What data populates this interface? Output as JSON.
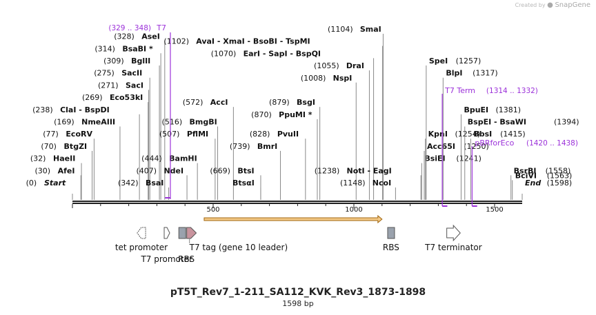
{
  "watermark": {
    "created_by": "Created by",
    "brand": "SnapGene"
  },
  "map": {
    "title": "pT5T_Rev7_1-211_SA112_KVK_Rev3_1873-1898",
    "length_label": "1598 bp",
    "length": 1598,
    "scale_ticks": [
      {
        "value": 500,
        "label": "500"
      },
      {
        "value": 1000,
        "label": "1000"
      },
      {
        "value": 1500,
        "label": "1500"
      }
    ]
  },
  "colors": {
    "site_line": "#888888",
    "primer": "#9b30d9",
    "orf_fill": "#f3c988",
    "orf_stroke": "#a0650c",
    "text": "#111111"
  },
  "sites": [
    {
      "name": "AfeI",
      "pos": "(30)",
      "bp": 30,
      "row": 1
    },
    {
      "name": "HaeII",
      "pos": "(32)",
      "bp": 32,
      "row": 2
    },
    {
      "name": "BtgZI",
      "pos": "(70)",
      "bp": 70,
      "row": 3
    },
    {
      "name": "EcoRV",
      "pos": "(77)",
      "bp": 77,
      "row": 4
    },
    {
      "name": "NmeAIII",
      "pos": "(169)",
      "bp": 169,
      "row": 5
    },
    {
      "name": "ClaI",
      "name2": "BspDI",
      "pos": "(238)",
      "bp": 238,
      "row": 6
    },
    {
      "name": "Eco53kI",
      "pos": "(269)",
      "bp": 269,
      "row": 7
    },
    {
      "name": "SacI",
      "pos": "(271)",
      "bp": 271,
      "row": 8
    },
    {
      "name": "SacII",
      "pos": "(275)",
      "bp": 275,
      "row": 9
    },
    {
      "name": "BglII",
      "pos": "(309)",
      "bp": 309,
      "row": 10
    },
    {
      "name": "BsaBI *",
      "pos": "(314)",
      "bp": 314,
      "row": 11
    },
    {
      "name": "AseI",
      "pos": "(328)",
      "bp": 328,
      "row": 12
    },
    {
      "name": "BsaI",
      "pos": "(342)",
      "bp": 342,
      "row": 0
    },
    {
      "name": "NdeI",
      "pos": "(407)",
      "bp": 407,
      "row": 1
    },
    {
      "name": "BamHI",
      "pos": "(444)",
      "bp": 444,
      "row": 2
    },
    {
      "name": "PflMI",
      "pos": "(507)",
      "bp": 507,
      "row": 4
    },
    {
      "name": "BmgBI",
      "pos": "(516)",
      "bp": 516,
      "row": 5
    },
    {
      "name": "AccI",
      "pos": "(572)",
      "bp": 572,
      "row": 6.6
    },
    {
      "name": "BtsI",
      "pos": "(669)",
      "bp": 669,
      "row": 1
    },
    {
      "name": "BtsαI",
      "pos": "",
      "bp": 669,
      "row": 0
    },
    {
      "name": "BmrI",
      "pos": "(739)",
      "bp": 739,
      "row": 3
    },
    {
      "name": "PvuII",
      "pos": "(828)",
      "bp": 828,
      "row": 4
    },
    {
      "name": "PpuMI *",
      "pos": "(870)",
      "bp": 870,
      "row": 5.6
    },
    {
      "name": "BsgI",
      "pos": "(879)",
      "bp": 879,
      "row": 6.6
    },
    {
      "name": "NspI",
      "pos": "(1008)",
      "bp": 1008,
      "row": 8.6
    },
    {
      "name": "DraI",
      "pos": "(1055)",
      "bp": 1055,
      "row": 9.6
    },
    {
      "name": "EarI",
      "name2": "SapI",
      "name3": "BspQI",
      "pos": "(1070)",
      "bp": 1070,
      "row": 10.6
    },
    {
      "name": "AvaI",
      "name2": "XmaI",
      "name3": "BsoBI",
      "name4": "TspMI",
      "pos": "(1102)",
      "bp": 1102,
      "row": 11.6
    },
    {
      "name": "SmaI",
      "pos": "(1104)",
      "bp": 1104,
      "row": 12.6
    },
    {
      "name": "NcoI",
      "pos": "(1148)",
      "bp": 1148,
      "row": 0
    },
    {
      "name": "NotI",
      "name2": "EagI",
      "pos": "(1238)",
      "bp": 1238,
      "row": 1
    },
    {
      "name": "BsiEI",
      "pos": "(1241)",
      "bp": 1241,
      "row": 2
    },
    {
      "name": "Acc65I",
      "pos": "(1250)",
      "bp": 1250,
      "row": 3
    },
    {
      "name": "KpnI",
      "pos": "(1254)",
      "bp": 1254,
      "row": 4
    },
    {
      "name": "SpeI",
      "pos": "(1257)",
      "bp": 1257,
      "row": 10
    },
    {
      "name": "BlpI",
      "pos": "(1317)",
      "bp": 1317,
      "row": 9
    },
    {
      "name": "BpuEI",
      "pos": "(1381)",
      "bp": 1381,
      "row": 6
    },
    {
      "name": "BspEI",
      "name2": "BsaWI",
      "pos": "(1394)",
      "bp": 1394,
      "row": 5
    },
    {
      "name": "BbsI",
      "pos": "(1415)",
      "bp": 1415,
      "row": 4
    },
    {
      "name": "BsrBI",
      "pos": "(1558)",
      "bp": 1558,
      "row": 1
    },
    {
      "name": "BciVI",
      "pos": "(1563)",
      "bp": 1563,
      "row": 0.6
    },
    {
      "name": "Start",
      "pos": "(0)",
      "bp": 0,
      "row": 0,
      "special": "start"
    },
    {
      "name": "End",
      "pos": "(1598)",
      "bp": 1598,
      "row": 0,
      "special": "end"
    }
  ],
  "primers": [
    {
      "name": "T7",
      "range": "(329 .. 348)",
      "start": 329,
      "end": 348,
      "dir": "fwd"
    },
    {
      "name": "T7 Term",
      "range": "(1314 .. 1332)",
      "start": 1314,
      "end": 1332,
      "dir": "rev"
    },
    {
      "name": "pBRforEco",
      "range": "(1420 .. 1438)",
      "start": 1420,
      "end": 1438,
      "dir": "rev"
    }
  ],
  "orf": {
    "start": 468,
    "end": 1100,
    "dir": "fwd"
  },
  "features": [
    {
      "name": "tet promoter",
      "type": "promoter",
      "start": 230,
      "end": 260,
      "dir": "rev",
      "label_row": 0
    },
    {
      "name": "T7 promoter",
      "type": "promoter",
      "start": 326,
      "end": 344,
      "dir": "fwd",
      "label_row": 1
    },
    {
      "name": "RBS",
      "type": "rbs",
      "start": 378,
      "end": 402,
      "dir": "none",
      "label_row": 1
    },
    {
      "name": "T7 tag (gene 10 leader)",
      "type": "tag",
      "start": 406,
      "end": 440,
      "dir": "fwd",
      "label_row": 0
    },
    {
      "name": "RBS",
      "type": "rbs",
      "start": 1120,
      "end": 1144,
      "dir": "none",
      "label_row": 0
    },
    {
      "name": "T7 terminator",
      "type": "terminator",
      "start": 1330,
      "end": 1378,
      "dir": "fwd",
      "label_row": 0
    }
  ]
}
